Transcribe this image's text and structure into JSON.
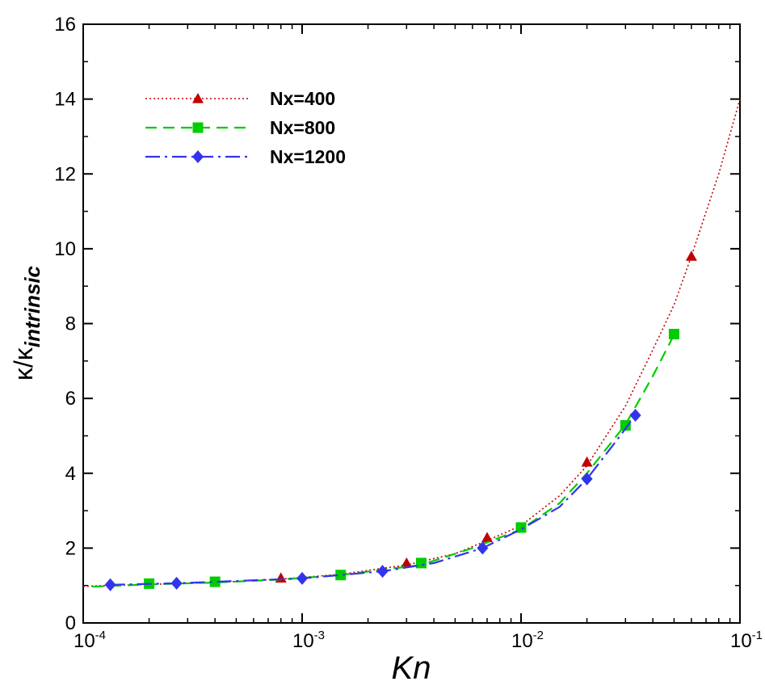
{
  "chart_data": {
    "type": "line",
    "xscale": "log",
    "xlim": [
      0.0001,
      0.1
    ],
    "ylim": [
      0,
      16
    ],
    "yticks": [
      0,
      2,
      4,
      6,
      8,
      10,
      12,
      14,
      16
    ],
    "xticks": [
      {
        "value": 0.0001,
        "base": "10",
        "exp": "-4"
      },
      {
        "value": 0.001,
        "base": "10",
        "exp": "-3"
      },
      {
        "value": 0.01,
        "base": "10",
        "exp": "-2"
      },
      {
        "value": 0.1,
        "base": "10",
        "exp": "-1"
      }
    ],
    "xlabel": "Kn",
    "ylabel": {
      "main": "κ/κ",
      "sub": "intrinsic"
    },
    "legend_position": "top-left",
    "series": [
      {
        "name": "Nx=400",
        "color": "#c00000",
        "line": "dotted",
        "marker": "triangle",
        "curve": [
          [
            0.0001,
            0.98
          ],
          [
            0.0002,
            1.03
          ],
          [
            0.0004,
            1.08
          ],
          [
            0.0008,
            1.17
          ],
          [
            0.0015,
            1.3
          ],
          [
            0.003,
            1.55
          ],
          [
            0.005,
            1.85
          ],
          [
            0.007,
            2.2
          ],
          [
            0.01,
            2.6
          ],
          [
            0.015,
            3.4
          ],
          [
            0.02,
            4.2
          ],
          [
            0.03,
            5.8
          ],
          [
            0.04,
            7.3
          ],
          [
            0.05,
            8.5
          ],
          [
            0.06,
            9.8
          ],
          [
            0.08,
            12.0
          ],
          [
            0.1,
            14.0
          ]
        ],
        "points": [
          [
            0.0008,
            1.2
          ],
          [
            0.003,
            1.6
          ],
          [
            0.007,
            2.28
          ],
          [
            0.02,
            4.3
          ],
          [
            0.06,
            9.8
          ]
        ]
      },
      {
        "name": "Nx=800",
        "color": "#00cc00",
        "line": "dashed",
        "marker": "square",
        "curve": [
          [
            0.00011,
            0.97
          ],
          [
            0.0002,
            1.03
          ],
          [
            0.0004,
            1.08
          ],
          [
            0.0008,
            1.16
          ],
          [
            0.0015,
            1.28
          ],
          [
            0.0035,
            1.55
          ],
          [
            0.006,
            2.0
          ],
          [
            0.01,
            2.5
          ],
          [
            0.015,
            3.2
          ],
          [
            0.02,
            4.0
          ],
          [
            0.03,
            5.3
          ],
          [
            0.04,
            6.6
          ],
          [
            0.05,
            7.7
          ]
        ],
        "points": [
          [
            0.0002,
            1.05
          ],
          [
            0.0004,
            1.1
          ],
          [
            0.0015,
            1.28
          ],
          [
            0.0035,
            1.6
          ],
          [
            0.01,
            2.55
          ],
          [
            0.03,
            5.28
          ],
          [
            0.05,
            7.72
          ]
        ]
      },
      {
        "name": "Nx=1200",
        "color": "#3333ee",
        "line": "dash-dot",
        "marker": "diamond",
        "curve": [
          [
            0.000133,
            1.02
          ],
          [
            0.000267,
            1.06
          ],
          [
            0.001,
            1.19
          ],
          [
            0.00233,
            1.38
          ],
          [
            0.004,
            1.6
          ],
          [
            0.00667,
            2.0
          ],
          [
            0.01,
            2.5
          ],
          [
            0.015,
            3.1
          ],
          [
            0.02,
            3.85
          ],
          [
            0.0267,
            4.8
          ],
          [
            0.0333,
            5.55
          ]
        ],
        "points": [
          [
            0.000133,
            1.02
          ],
          [
            0.000267,
            1.06
          ],
          [
            0.001,
            1.19
          ],
          [
            0.00233,
            1.38
          ],
          [
            0.00667,
            2.0
          ],
          [
            0.02,
            3.85
          ],
          [
            0.0333,
            5.55
          ]
        ]
      }
    ]
  }
}
